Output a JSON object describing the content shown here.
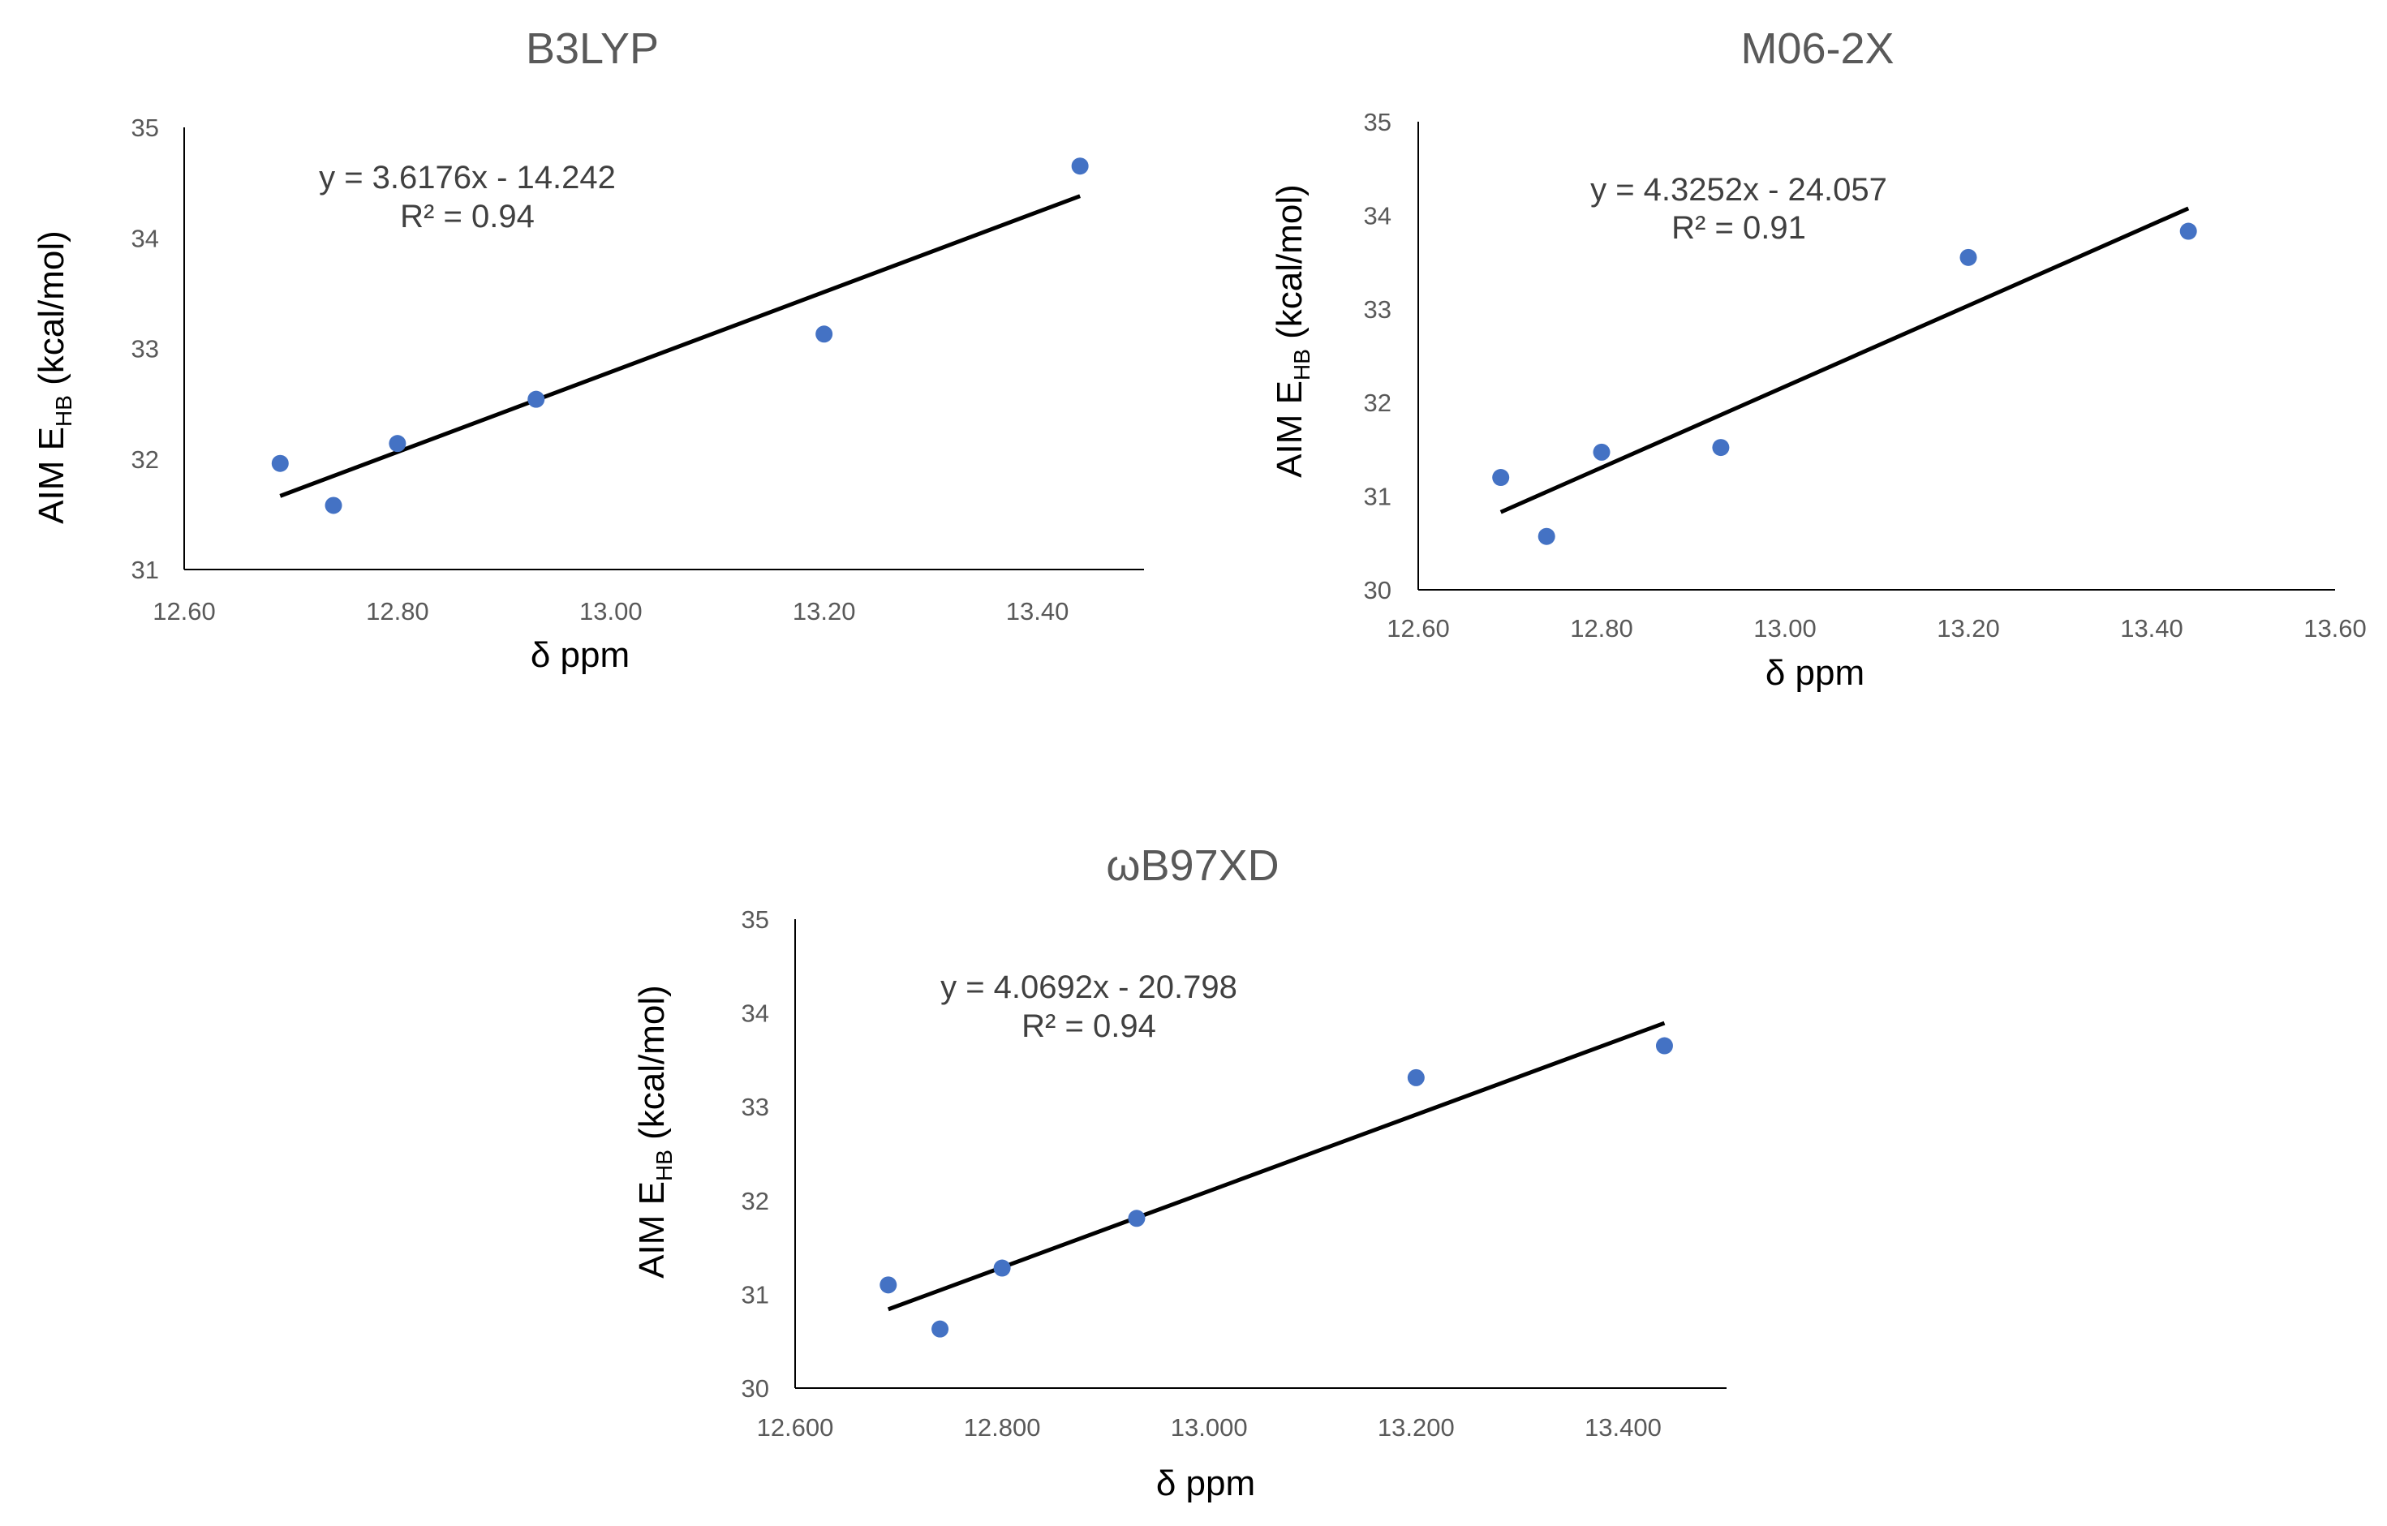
{
  "colors": {
    "marker": "#4472C4",
    "trend": "#000000",
    "axis": "#000000",
    "title": "#595959"
  },
  "chart_data": [
    {
      "type": "scatter",
      "title": "B3LYP",
      "xlabel": "δ ppm",
      "ylabel": {
        "main": "AIM E",
        "sub": "HB",
        "units": "(kcal/mol)"
      },
      "xlim": [
        12.6,
        13.5
      ],
      "ylim": [
        31,
        35
      ],
      "xticks": [
        "12.60",
        "12.80",
        "13.00",
        "13.20",
        "13.40"
      ],
      "yticks": [
        "31",
        "32",
        "33",
        "34",
        "35"
      ],
      "x": [
        12.69,
        12.74,
        12.8,
        12.93,
        13.2,
        13.44
      ],
      "y": [
        31.96,
        31.58,
        32.14,
        32.54,
        33.13,
        34.65
      ],
      "trendline": {
        "slope": 3.6176,
        "intercept": -14.242,
        "x_start": 12.69,
        "x_end": 13.44
      },
      "equation": "y = 3.6176x - 14.242",
      "r2": "R² = 0.94"
    },
    {
      "type": "scatter",
      "title": "M06-2X",
      "xlabel": "δ ppm",
      "ylabel": {
        "main": "AIM E",
        "sub": "HB",
        "units": "(kcal/mol)"
      },
      "xlim": [
        12.6,
        13.6
      ],
      "ylim": [
        30,
        35
      ],
      "xticks": [
        "12.60",
        "12.80",
        "13.00",
        "13.20",
        "13.40",
        "13.60"
      ],
      "yticks": [
        "30",
        "31",
        "32",
        "33",
        "34",
        "35"
      ],
      "x": [
        12.69,
        12.74,
        12.8,
        12.93,
        13.2,
        13.44
      ],
      "y": [
        31.2,
        30.57,
        31.47,
        31.52,
        33.55,
        33.83
      ],
      "trendline": {
        "slope": 4.3252,
        "intercept": -24.057,
        "x_start": 12.69,
        "x_end": 13.44
      },
      "equation": "y = 4.3252x - 24.057",
      "r2": "R² = 0.91"
    },
    {
      "type": "scatter",
      "title": "ωB97XD",
      "xlabel": "δ ppm",
      "ylabel": {
        "main": "AIM E",
        "sub": "HB",
        "units": "(kcal/mol)"
      },
      "xlim": [
        12.6,
        13.5
      ],
      "ylim": [
        30,
        35
      ],
      "xticks": [
        "12.600",
        "12.800",
        "13.000",
        "13.200",
        "13.400"
      ],
      "yticks": [
        "30",
        "31",
        "32",
        "33",
        "34",
        "35"
      ],
      "x": [
        12.69,
        12.74,
        12.8,
        12.93,
        13.2,
        13.44
      ],
      "y": [
        31.1,
        30.63,
        31.28,
        31.81,
        33.31,
        33.65
      ],
      "trendline": {
        "slope": 4.0692,
        "intercept": -20.798,
        "x_start": 12.69,
        "x_end": 13.44
      },
      "equation": "y = 4.0692x - 20.798",
      "r2": "R² = 0.94"
    }
  ]
}
